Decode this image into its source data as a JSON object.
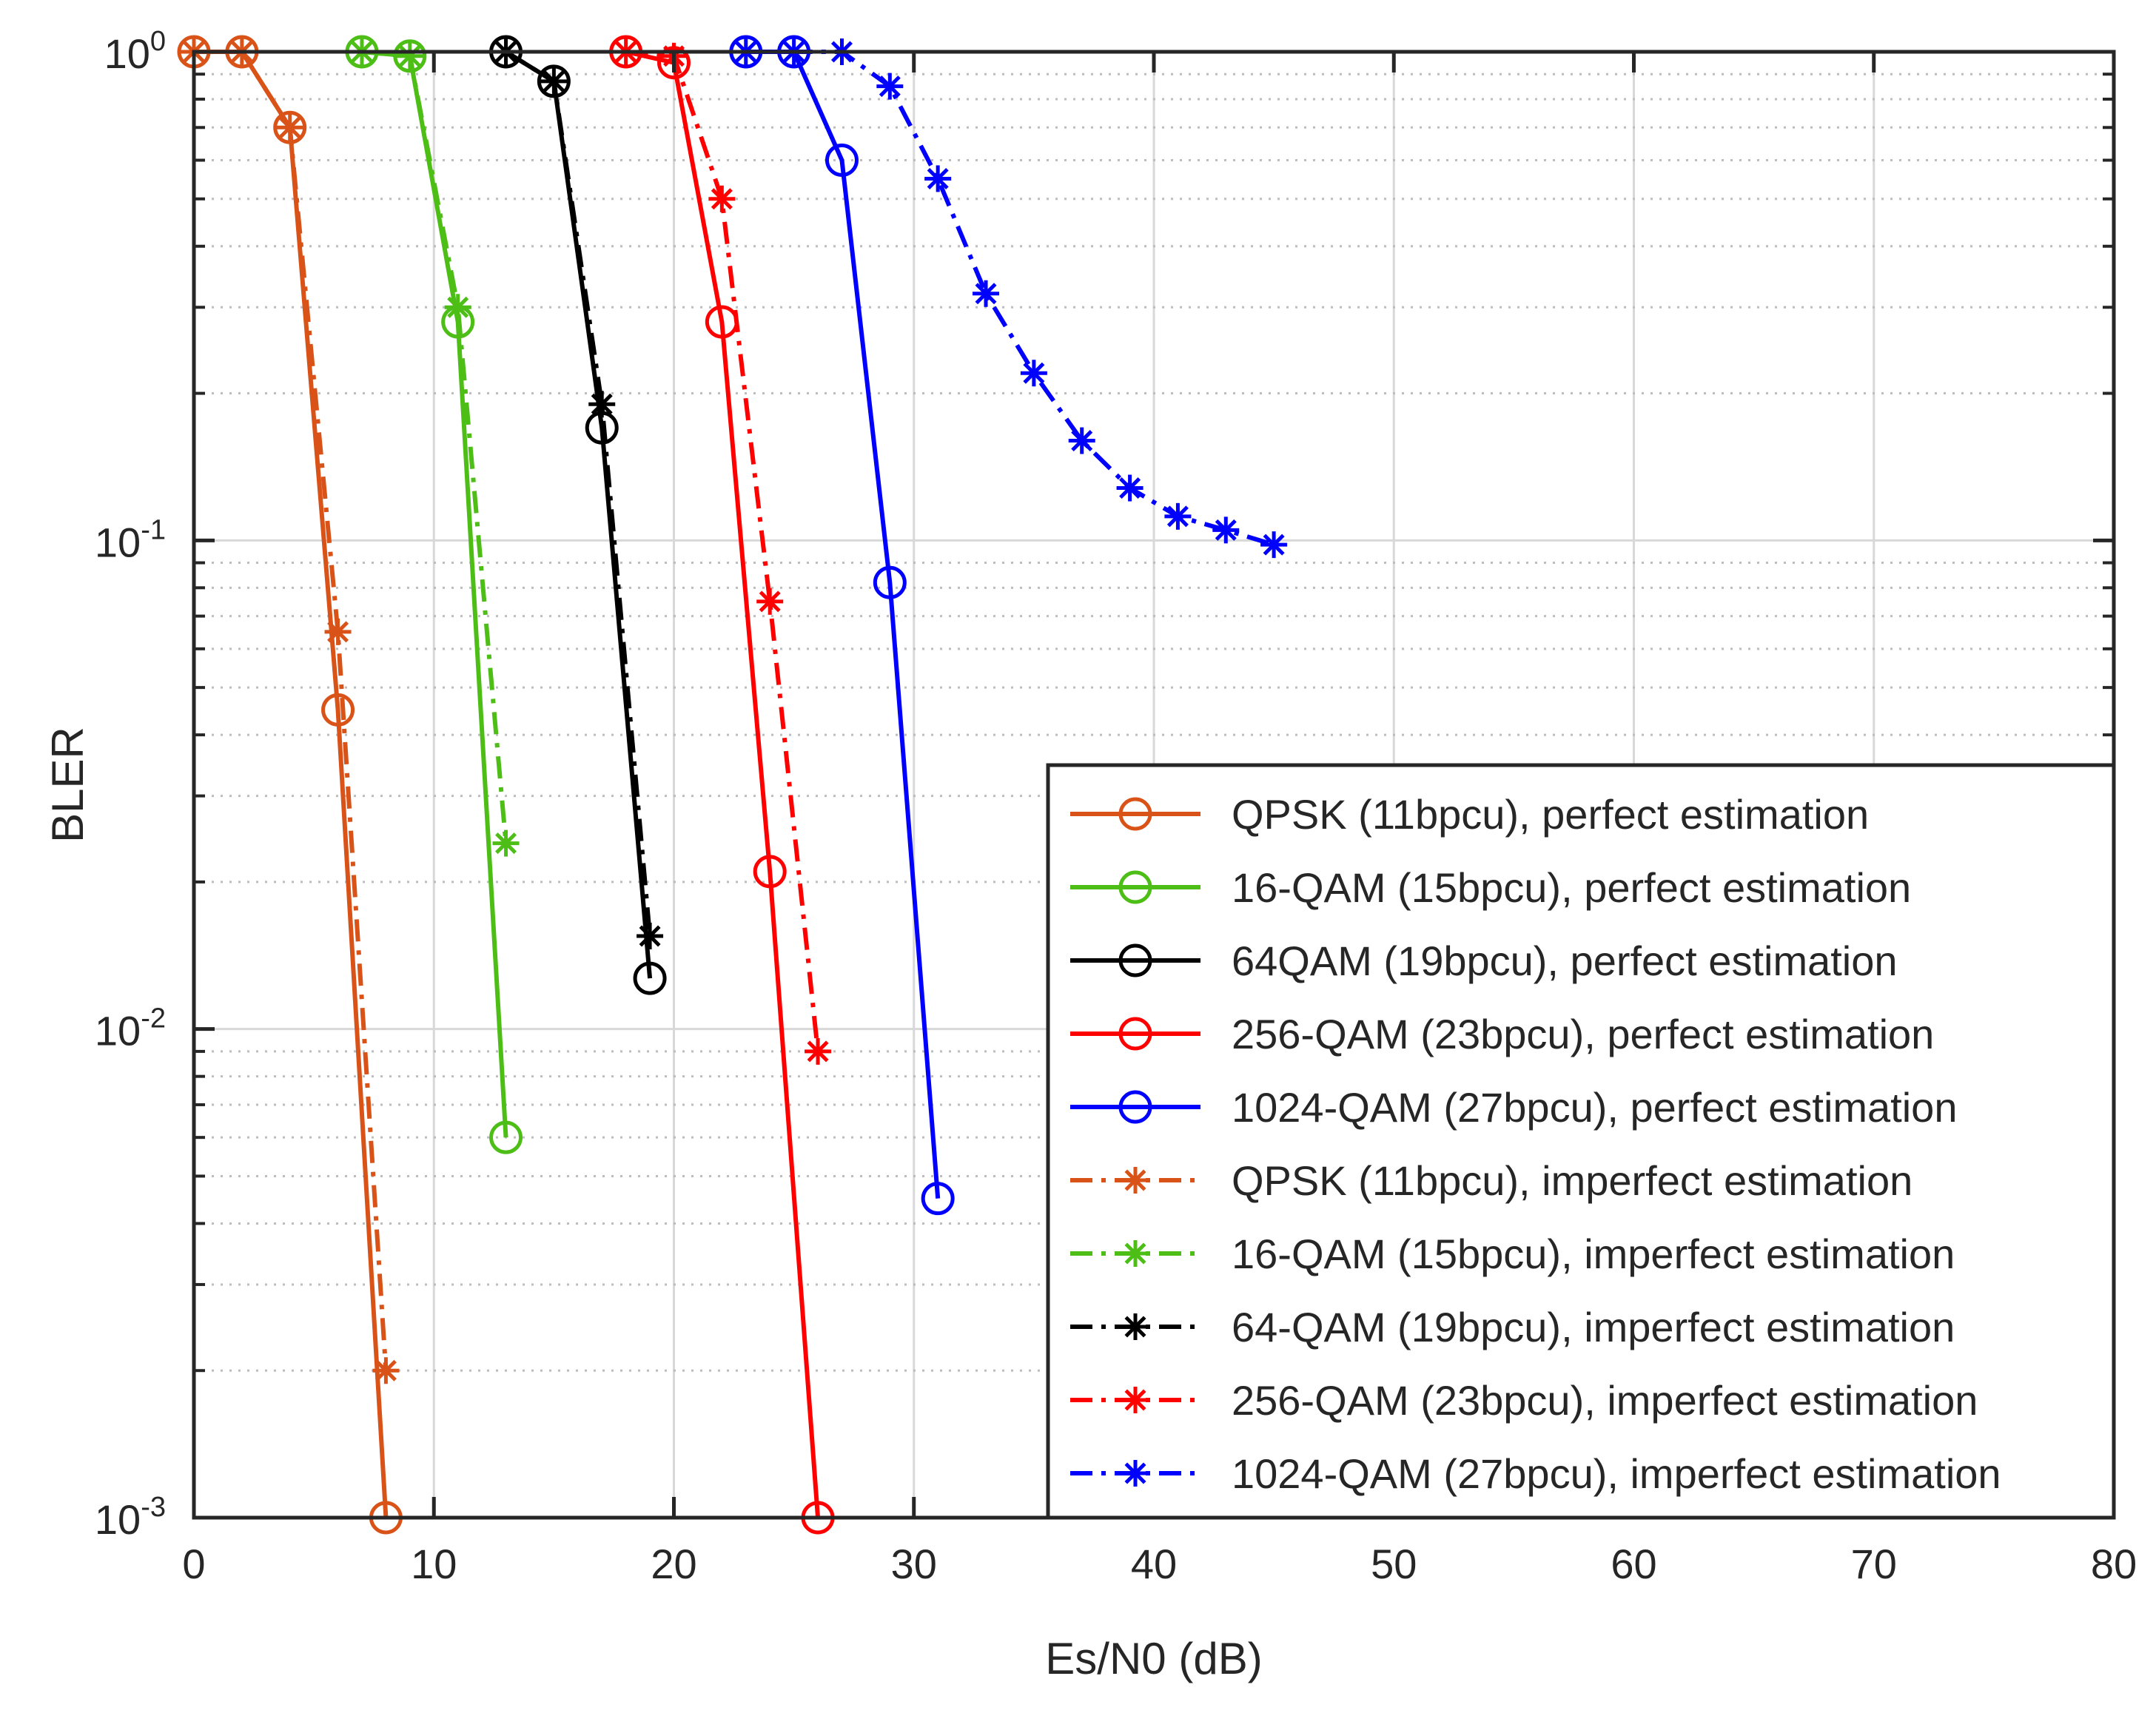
{
  "chart_data": {
    "type": "line",
    "title": "",
    "xlabel": "Es/N0 (dB)",
    "ylabel": "BLER",
    "xlim": [
      0,
      80
    ],
    "ylim": [
      0.001,
      1
    ],
    "yscale": "log",
    "grid": true,
    "legend_position": "bottom-right",
    "x_ticks": [
      "0",
      "10",
      "20",
      "30",
      "40",
      "50",
      "60",
      "70",
      "80"
    ],
    "y_ticks": [
      {
        "base": "10",
        "exp": "0",
        "value": 1
      },
      {
        "base": "10",
        "exp": "-1",
        "value": 0.1
      },
      {
        "base": "10",
        "exp": "-2",
        "value": 0.01
      },
      {
        "base": "10",
        "exp": "-3",
        "value": 0.001
      }
    ],
    "series": [
      {
        "name": "QPSK (11bpcu), perfect estimation",
        "color": "#D95319",
        "line": "solid",
        "marker": "circle",
        "x": [
          0,
          2,
          4,
          6,
          8
        ],
        "y": [
          1.0,
          1.0,
          0.7,
          0.045,
          0.001
        ]
      },
      {
        "name": "16-QAM (15bpcu), perfect estimation",
        "color": "#4DBE16",
        "line": "solid",
        "marker": "circle",
        "x": [
          7,
          9,
          11,
          13
        ],
        "y": [
          1.0,
          0.98,
          0.28,
          0.006
        ]
      },
      {
        "name": "64QAM (19bpcu), perfect estimation",
        "color": "#000000",
        "line": "solid",
        "marker": "circle",
        "x": [
          13,
          15,
          17,
          19
        ],
        "y": [
          1.0,
          0.87,
          0.17,
          0.0127
        ]
      },
      {
        "name": "256-QAM (23bpcu), perfect estimation",
        "color": "#FF0000",
        "line": "solid",
        "marker": "circle",
        "x": [
          18,
          20,
          22,
          24,
          26
        ],
        "y": [
          1.0,
          0.95,
          0.28,
          0.021,
          0.001
        ]
      },
      {
        "name": "1024-QAM (27bpcu), perfect estimation",
        "color": "#0000FF",
        "line": "solid",
        "marker": "circle",
        "x": [
          23,
          25,
          27,
          29,
          31
        ],
        "y": [
          1.0,
          1.0,
          0.6,
          0.082,
          0.0045
        ]
      },
      {
        "name": "QPSK (11bpcu), imperfect estimation",
        "color": "#D95319",
        "line": "dashdot",
        "marker": "asterisk",
        "x": [
          0,
          2,
          4,
          6,
          8
        ],
        "y": [
          1.0,
          1.0,
          0.7,
          0.065,
          0.002
        ]
      },
      {
        "name": "16-QAM (15bpcu), imperfect estimation",
        "color": "#4DBE16",
        "line": "dashdot",
        "marker": "asterisk",
        "x": [
          7,
          9,
          11,
          13
        ],
        "y": [
          1.0,
          0.98,
          0.3,
          0.024
        ]
      },
      {
        "name": "64-QAM (19bpcu), imperfect estimation",
        "color": "#000000",
        "line": "dashdot",
        "marker": "asterisk",
        "x": [
          13,
          15,
          17,
          19
        ],
        "y": [
          1.0,
          0.87,
          0.19,
          0.0155
        ]
      },
      {
        "name": "256-QAM (23bpcu), imperfect estimation",
        "color": "#FF0000",
        "line": "dashdot",
        "marker": "asterisk",
        "x": [
          18,
          20,
          22,
          24,
          26
        ],
        "y": [
          1.0,
          0.98,
          0.5,
          0.075,
          0.009
        ]
      },
      {
        "name": "1024-QAM (27bpcu), imperfect estimation",
        "color": "#0000FF",
        "line": "dashdot",
        "marker": "asterisk",
        "x": [
          23,
          25,
          27,
          29,
          31,
          33,
          35,
          37,
          39,
          41,
          43,
          45
        ],
        "y": [
          1.0,
          1.0,
          1.0,
          0.85,
          0.55,
          0.32,
          0.22,
          0.16,
          0.128,
          0.112,
          0.105,
          0.098
        ]
      }
    ]
  }
}
